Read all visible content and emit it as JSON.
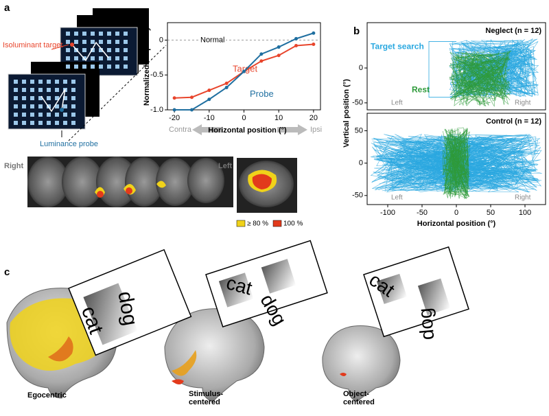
{
  "panel_labels": [
    "a",
    "b",
    "c"
  ],
  "panel_a": {
    "stimulus_labels": [
      "Isoluminant target",
      "Luminance probe"
    ],
    "slice_labels": [
      "Right",
      "Left"
    ],
    "map_legend": [
      "≥ 80 %",
      "100 %"
    ],
    "arrow_labels": [
      "Contra",
      "Ipsi"
    ]
  },
  "chart_data": [
    {
      "type": "line",
      "ylabel": "Normalized frequency",
      "xlabel": "Horizontal position (°)",
      "x": [
        -20,
        -15,
        -10,
        -5,
        0,
        5,
        10,
        15,
        20
      ],
      "series": [
        {
          "name": "Target",
          "color": "#e8452c",
          "values": [
            -0.83,
            -0.82,
            -0.72,
            -0.62,
            -0.45,
            -0.3,
            -0.22,
            -0.08,
            -0.06
          ]
        },
        {
          "name": "Probe",
          "color": "#1f6fa0",
          "values": [
            -1.0,
            -1.0,
            -0.85,
            -0.68,
            -0.45,
            -0.2,
            -0.1,
            0.02,
            0.1
          ]
        }
      ],
      "xlim": [
        -22,
        22
      ],
      "ylim": [
        -1,
        0.25
      ],
      "xticks": [
        -20,
        -10,
        0,
        10,
        20
      ],
      "yticks": [
        {
          "value": -1,
          "label": "-1.0"
        },
        -0.5,
        0
      ],
      "reference_label": "Normal"
    },
    {
      "type": "trace",
      "title": "Neglect (n = 12)",
      "ylabel": "Vertical position (°)",
      "series": [
        {
          "name": "Target search",
          "color": "#2aa8e0"
        },
        {
          "name": "Rest",
          "color": "#2e9a3a"
        }
      ],
      "side_labels": [
        "Left",
        "Right"
      ],
      "xlim": [
        -130,
        130
      ],
      "ylim": [
        -60,
        65
      ],
      "yticks": [
        -50,
        0
      ]
    },
    {
      "type": "trace",
      "title": "Control (n = 12)",
      "xlabel": "Horizontal position (°)",
      "trace_colors": [
        "#2aa8e0",
        "#2e9a3a"
      ],
      "side_labels": [
        "Left",
        "Right"
      ],
      "xlim": [
        -130,
        130
      ],
      "ylim": [
        -64,
        77
      ],
      "xticks": [
        -100,
        -50,
        0,
        50,
        100
      ],
      "yticks": [
        -50,
        0,
        50
      ]
    }
  ],
  "panel_c": {
    "cards": [
      [
        "cat",
        "dog"
      ],
      [
        "cat",
        "dog"
      ],
      [
        "cat",
        "dog"
      ]
    ],
    "frames": [
      "Egocentric",
      "Stimulus-\ncentered",
      "Object-\ncentered"
    ]
  }
}
